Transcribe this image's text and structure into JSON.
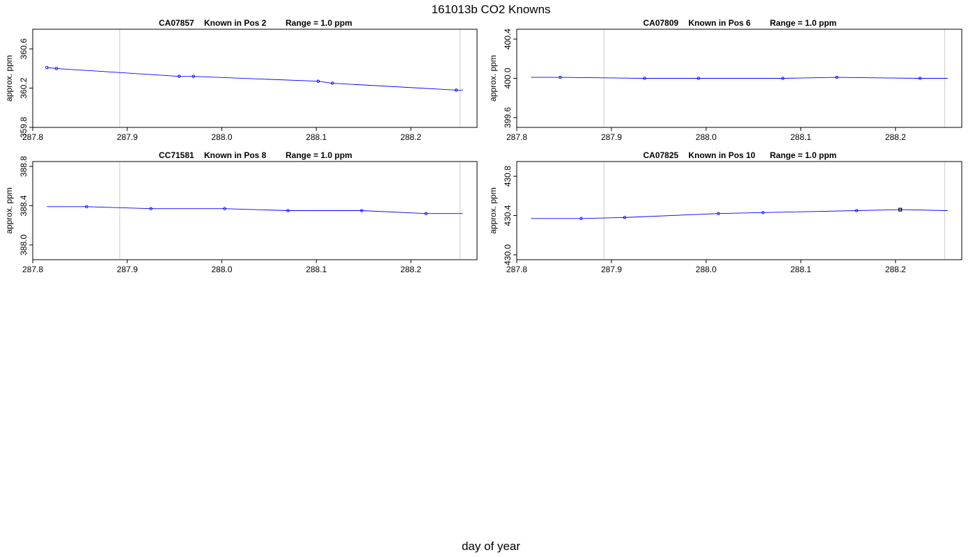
{
  "title": "161013b   CO2 Knowns",
  "xlabel": "day of year",
  "chart_data": [
    {
      "type": "line",
      "id": "CA07857",
      "position": "Known in Pos 2",
      "range": "Range = 1.0 ppm",
      "ylabel": "approx. ppm",
      "x_ticks": [
        "287.8",
        "287.9",
        "288.0",
        "288.1",
        "288.2"
      ],
      "y_ticks": [
        "359.8",
        "360.2",
        "360.6"
      ],
      "xlim": [
        287.8,
        288.27
      ],
      "ylim": [
        359.8,
        360.8
      ],
      "vlines": [
        287.892,
        288.252
      ],
      "x": [
        287.815,
        287.825,
        287.955,
        287.97,
        288.102,
        288.117,
        288.248
      ],
      "y": [
        360.41,
        360.4,
        360.32,
        360.32,
        360.27,
        360.25,
        360.18
      ],
      "line_x": [
        287.815,
        288.255
      ],
      "line_y": [
        360.41,
        360.18
      ],
      "colors": {
        "line": "#0000ff",
        "point": "#0000ff"
      }
    },
    {
      "type": "line",
      "id": "CA07809",
      "position": "Known in Pos 6",
      "range": "Range = 1.0 ppm",
      "ylabel": "approx. ppm",
      "x_ticks": [
        "287.8",
        "287.9",
        "288.0",
        "288.1",
        "288.2"
      ],
      "y_ticks": [
        "399.6",
        "400.0",
        "400.4"
      ],
      "xlim": [
        287.8,
        288.27
      ],
      "ylim": [
        399.5,
        400.5
      ],
      "vlines": [
        287.892,
        288.252
      ],
      "x": [
        287.846,
        287.935,
        287.992,
        288.081,
        288.138,
        288.226
      ],
      "y": [
        400.01,
        400.0,
        400.0,
        400.0,
        400.01,
        400.0
      ],
      "line_x": [
        287.815,
        288.255
      ],
      "line_y": [
        400.01,
        400.0
      ],
      "colors": {
        "line": "#0000ff",
        "point": "#0000ff"
      }
    },
    {
      "type": "line",
      "id": "CC71581",
      "position": "Known in Pos 8",
      "range": "Range = 1.0 ppm",
      "ylabel": "approx. ppm",
      "x_ticks": [
        "287.8",
        "287.9",
        "288.0",
        "288.1",
        "288.2"
      ],
      "y_ticks": [
        "388.0",
        "388.4",
        "388.8"
      ],
      "xlim": [
        287.8,
        288.27
      ],
      "ylim": [
        387.85,
        388.85
      ],
      "vlines": [
        287.892,
        288.252
      ],
      "x": [
        287.857,
        287.925,
        288.003,
        288.07,
        288.148,
        288.216
      ],
      "y": [
        388.39,
        388.37,
        388.37,
        388.35,
        388.35,
        388.32
      ],
      "line_x": [
        287.815,
        288.255
      ],
      "line_y": [
        388.39,
        388.32
      ],
      "colors": {
        "line": "#0000ff",
        "point": "#0000ff"
      }
    },
    {
      "type": "line",
      "id": "CA07825",
      "position": "Known in Pos 10",
      "range": "Range = 1.0 ppm",
      "ylabel": "approx. ppm",
      "x_ticks": [
        "287.8",
        "287.9",
        "288.0",
        "288.1",
        "288.2"
      ],
      "y_ticks": [
        "430.0",
        "430.4",
        "430.8"
      ],
      "xlim": [
        287.8,
        288.27
      ],
      "ylim": [
        429.95,
        430.95
      ],
      "vlines": [
        287.892,
        288.252
      ],
      "x": [
        287.868,
        287.914,
        288.013,
        288.06,
        288.159,
        288.205
      ],
      "y": [
        430.37,
        430.38,
        430.42,
        430.43,
        430.45,
        430.46
      ],
      "line_x": [
        287.815,
        288.255
      ],
      "line_y": [
        430.37,
        430.45
      ],
      "colors": {
        "line": "#0000ff",
        "point": "#0000ff",
        "highlight": "#000000"
      },
      "highlight_index": 5
    }
  ]
}
